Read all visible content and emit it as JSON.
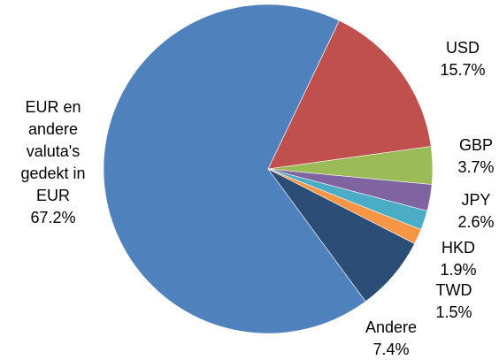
{
  "chart_data": {
    "type": "pie",
    "title": "",
    "slices": [
      {
        "name_lines": [
          "USD"
        ],
        "value": 15.7,
        "value_label": "15.7%",
        "color": "#C0504D"
      },
      {
        "name_lines": [
          "GBP"
        ],
        "value": 3.7,
        "value_label": "3.7%",
        "color": "#9BBB59"
      },
      {
        "name_lines": [
          "JPY"
        ],
        "value": 2.6,
        "value_label": "2.6%",
        "color": "#8064A2"
      },
      {
        "name_lines": [
          "HKD"
        ],
        "value": 1.9,
        "value_label": "1.9%",
        "color": "#4BACC6"
      },
      {
        "name_lines": [
          "TWD"
        ],
        "value": 1.5,
        "value_label": "1.5%",
        "color": "#F79646"
      },
      {
        "name_lines": [
          "Andere"
        ],
        "value": 7.4,
        "value_label": "7.4%",
        "color": "#2C4D75"
      },
      {
        "name_lines": [
          "EUR en",
          "andere",
          "valuta's",
          "gedekt in",
          "EUR"
        ],
        "value": 67.2,
        "value_label": "67.2%",
        "color": "#4F81BD"
      }
    ],
    "legend": "none",
    "start_angle_deg": 25.6,
    "direction": "clockwise"
  }
}
